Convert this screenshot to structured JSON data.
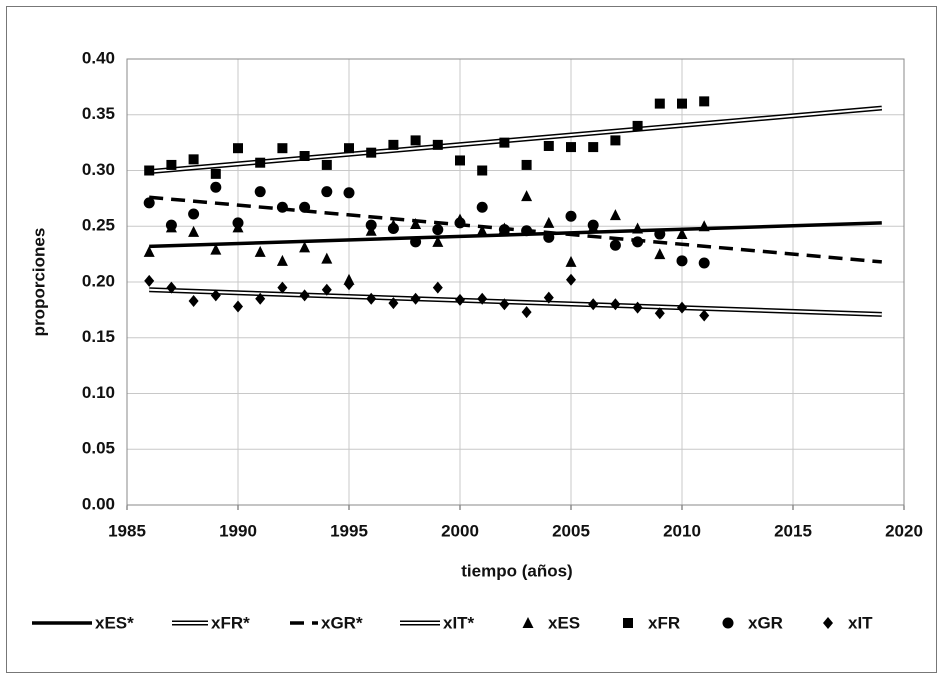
{
  "chart_data": {
    "type": "scatter",
    "xlabel": "tiempo (años)",
    "ylabel": "proporciones",
    "xlim": [
      1985,
      2020
    ],
    "xticks": [
      1985,
      1990,
      1995,
      2000,
      2005,
      2010,
      2015,
      2020
    ],
    "ylim": [
      0,
      0.4
    ],
    "yticks": [
      {
        "value": 0,
        "label": "0.00"
      },
      {
        "value": 0.05,
        "label": "0.05"
      },
      {
        "value": 0.1,
        "label": "0.10"
      },
      {
        "value": 0.15,
        "label": "0.15"
      },
      {
        "value": 0.2,
        "label": "0.20"
      },
      {
        "value": 0.25,
        "label": "0.25"
      },
      {
        "value": 0.3,
        "label": "0.30"
      },
      {
        "value": 0.35,
        "label": "0.35"
      },
      {
        "value": 0.4,
        "label": "0.40"
      }
    ],
    "grid": true,
    "legend": "bottom",
    "series": [
      {
        "name": "xES*",
        "color": "#000000",
        "style": "solid",
        "x": [
          1986,
          2019
        ],
        "values": [
          0.232,
          0.253
        ]
      },
      {
        "name": "xFR*",
        "color": "#000000",
        "style": "double",
        "x": [
          1986,
          2019
        ],
        "values": [
          0.299,
          0.356
        ]
      },
      {
        "name": "xGR*",
        "color": "#000000",
        "style": "dashed",
        "x": [
          1986,
          2019
        ],
        "values": [
          0.276,
          0.218
        ]
      },
      {
        "name": "xIT*",
        "color": "#000000",
        "style": "double",
        "x": [
          1986,
          2019
        ],
        "values": [
          0.193,
          0.171
        ]
      },
      {
        "name": "xES",
        "color": "#000000",
        "marker": "triangle",
        "x": [
          1986,
          1987,
          1988,
          1989,
          1990,
          1991,
          1992,
          1993,
          1994,
          1995,
          1996,
          1997,
          1998,
          1999,
          2000,
          2001,
          2002,
          2003,
          2004,
          2005,
          2006,
          2007,
          2008,
          2009,
          2010,
          2011
        ],
        "values": [
          0.227,
          0.249,
          0.245,
          0.229,
          0.249,
          0.227,
          0.219,
          0.231,
          0.221,
          0.202,
          0.246,
          0.251,
          0.252,
          0.236,
          0.256,
          0.246,
          0.248,
          0.277,
          0.253,
          0.218,
          0.249,
          0.26,
          0.248,
          0.225,
          0.243,
          0.25
        ]
      },
      {
        "name": "xFR",
        "color": "#000000",
        "marker": "square",
        "x": [
          1986,
          1987,
          1988,
          1989,
          1990,
          1991,
          1992,
          1993,
          1994,
          1995,
          1996,
          1997,
          1998,
          1999,
          2000,
          2001,
          2002,
          2003,
          2004,
          2005,
          2006,
          2007,
          2008,
          2009,
          2010,
          2011
        ],
        "values": [
          0.3,
          0.305,
          0.31,
          0.297,
          0.32,
          0.307,
          0.32,
          0.313,
          0.305,
          0.32,
          0.316,
          0.323,
          0.327,
          0.323,
          0.309,
          0.3,
          0.325,
          0.305,
          0.322,
          0.321,
          0.321,
          0.327,
          0.34,
          0.36,
          0.36,
          0.362
        ]
      },
      {
        "name": "xGR",
        "color": "#000000",
        "marker": "circle",
        "x": [
          1986,
          1987,
          1988,
          1989,
          1990,
          1991,
          1992,
          1993,
          1994,
          1995,
          1996,
          1997,
          1998,
          1999,
          2000,
          2001,
          2002,
          2003,
          2004,
          2005,
          2006,
          2007,
          2008,
          2009,
          2010,
          2011
        ],
        "values": [
          0.271,
          0.251,
          0.261,
          0.285,
          0.253,
          0.281,
          0.267,
          0.267,
          0.281,
          0.28,
          0.251,
          0.248,
          0.236,
          0.247,
          0.253,
          0.267,
          0.247,
          0.246,
          0.24,
          0.259,
          0.251,
          0.233,
          0.236,
          0.243,
          0.219,
          0.217
        ]
      },
      {
        "name": "xIT",
        "color": "#000000",
        "marker": "diamond",
        "x": [
          1986,
          1987,
          1988,
          1989,
          1990,
          1991,
          1992,
          1993,
          1994,
          1995,
          1996,
          1997,
          1998,
          1999,
          2000,
          2001,
          2002,
          2003,
          2004,
          2005,
          2006,
          2007,
          2008,
          2009,
          2010,
          2011
        ],
        "values": [
          0.201,
          0.195,
          0.183,
          0.188,
          0.178,
          0.185,
          0.195,
          0.188,
          0.193,
          0.198,
          0.185,
          0.181,
          0.185,
          0.195,
          0.184,
          0.185,
          0.18,
          0.173,
          0.186,
          0.202,
          0.18,
          0.18,
          0.177,
          0.172,
          0.177,
          0.17
        ]
      }
    ]
  }
}
